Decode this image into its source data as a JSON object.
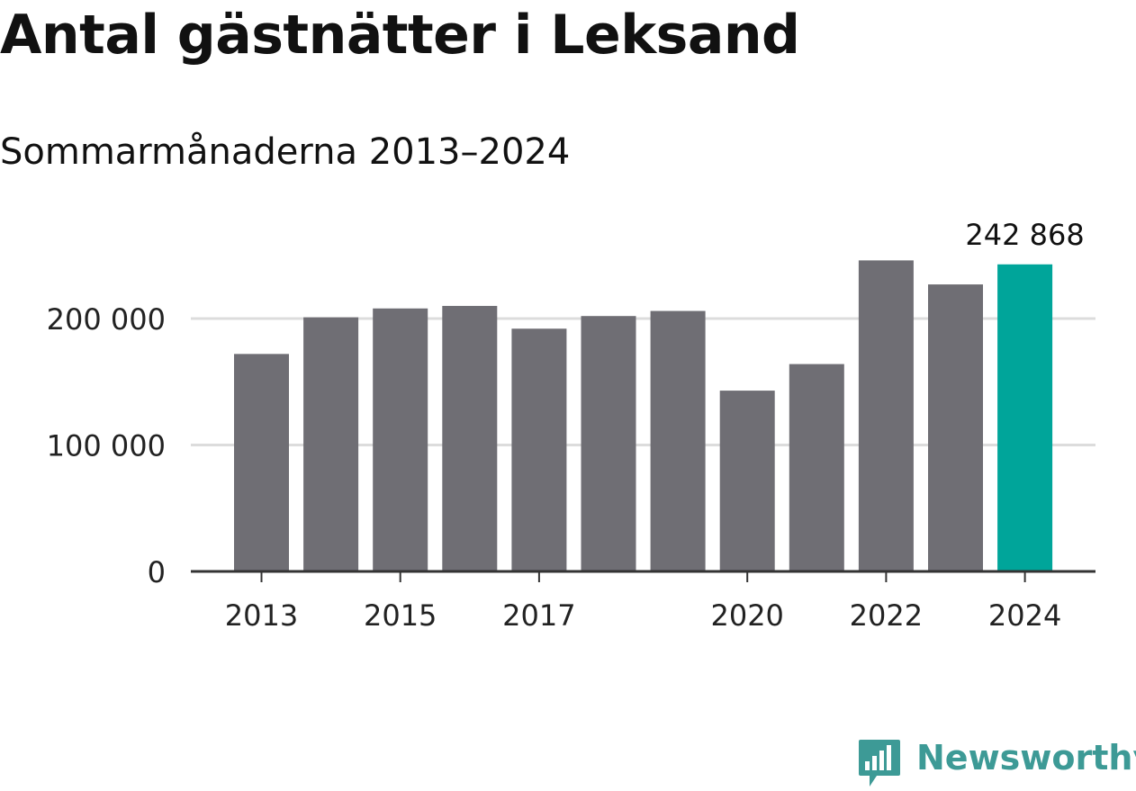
{
  "title": "Antal gästnätter i Leksand",
  "subtitle": "Sommarmånaderna 2013–2024",
  "brand": {
    "name": "Newsworthy",
    "color": "#3d9a96",
    "icon": "newsworthy-bar-logo-icon"
  },
  "colors": {
    "bar": "#6f6e74",
    "highlight": "#00a59a",
    "grid": "#dcdcdc",
    "axis": "#333333",
    "text": "#111111"
  },
  "chart_data": {
    "type": "bar",
    "categories": [
      "2013",
      "2014",
      "2015",
      "2016",
      "2017",
      "2018",
      "2019",
      "2020",
      "2021",
      "2022",
      "2023",
      "2024"
    ],
    "values": [
      172000,
      201000,
      208000,
      210000,
      192000,
      202000,
      206000,
      143000,
      164000,
      246000,
      227000,
      242868
    ],
    "highlight_category": "2024",
    "data_labels": [
      {
        "category": "2024",
        "text": "242 868"
      }
    ],
    "x_tick_labels": [
      "2013",
      "2015",
      "2017",
      "2020",
      "2022",
      "2024"
    ],
    "y_ticks": [
      {
        "value": 0,
        "label": "0"
      },
      {
        "value": 100000,
        "label": "100 000"
      },
      {
        "value": 200000,
        "label": "200 000"
      }
    ],
    "ylim": [
      0,
      200000
    ],
    "grid": true,
    "xlabel": "",
    "ylabel": ""
  }
}
